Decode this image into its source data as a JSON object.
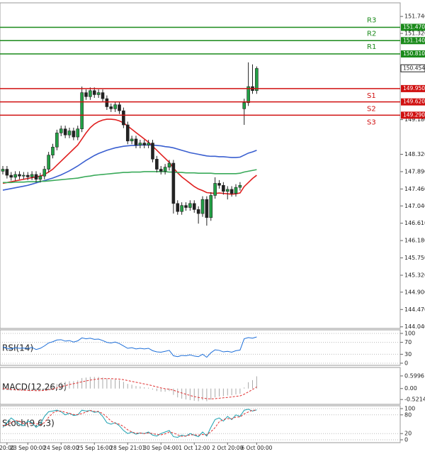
{
  "chart_data": [
    {
      "type": "candlestick",
      "categories": [
        null,
        "20:00",
        null,
        null,
        null,
        null,
        "23 Sep 00:00",
        null,
        null,
        null,
        null,
        null,
        null,
        null,
        "24 Sep 08:00",
        null,
        null,
        null,
        null,
        null,
        null,
        null,
        "25 Sep 16:00",
        null,
        null,
        null,
        null,
        null,
        null,
        null,
        "28 Sep 21:01",
        null,
        null,
        null,
        null,
        null,
        null,
        null,
        "30 Sep 04:00",
        null,
        null,
        null,
        null,
        null,
        null,
        null,
        "1 Oct 12:00",
        null,
        null,
        null,
        null,
        null,
        null,
        null,
        "2 Oct 20:00",
        null,
        null,
        null,
        null,
        null,
        null,
        "6 Oct 00:00"
      ],
      "open": [
        147.9,
        147.95,
        147.8,
        147.75,
        147.82,
        147.78,
        147.8,
        147.76,
        147.82,
        147.7,
        147.78,
        147.95,
        148.3,
        148.5,
        148.85,
        148.95,
        148.8,
        148.9,
        148.75,
        148.95,
        149.85,
        149.75,
        149.9,
        149.8,
        149.85,
        149.7,
        149.5,
        149.45,
        149.55,
        149.4,
        149.05,
        148.65,
        148.7,
        148.55,
        148.6,
        148.55,
        148.6,
        148.2,
        147.95,
        147.9,
        148.0,
        148.1,
        147.1,
        146.9,
        147.05,
        147.0,
        147.1,
        146.95,
        146.85,
        147.2,
        146.75,
        147.3,
        147.6,
        147.55,
        147.4,
        147.45,
        147.35,
        147.5,
        149.45,
        149.6,
        150.0,
        149.9
      ],
      "high": [
        148.03,
        148.03,
        147.88,
        147.9,
        147.9,
        147.88,
        147.88,
        147.9,
        147.9,
        147.86,
        148.03,
        148.38,
        148.58,
        148.93,
        149.03,
        149.03,
        148.98,
        148.98,
        149.03,
        150.0,
        149.93,
        149.98,
        149.98,
        149.93,
        149.93,
        149.78,
        149.58,
        149.63,
        149.63,
        149.48,
        149.13,
        148.78,
        148.78,
        148.68,
        148.68,
        148.68,
        148.68,
        148.28,
        148.03,
        148.08,
        148.18,
        148.18,
        147.18,
        147.13,
        147.13,
        147.18,
        147.18,
        147.03,
        147.28,
        147.28,
        147.38,
        147.75,
        147.68,
        147.63,
        147.53,
        147.53,
        147.58,
        147.63,
        149.7,
        150.6,
        150.55,
        150.5
      ],
      "low": [
        147.82,
        147.72,
        147.67,
        147.67,
        147.7,
        147.7,
        147.68,
        147.68,
        147.62,
        147.62,
        147.7,
        147.87,
        148.22,
        148.42,
        148.77,
        148.72,
        148.72,
        148.67,
        148.67,
        148.87,
        149.67,
        149.67,
        149.72,
        149.72,
        149.62,
        149.42,
        149.37,
        149.37,
        149.32,
        148.97,
        148.57,
        148.57,
        148.47,
        148.47,
        148.47,
        148.47,
        148.12,
        147.87,
        147.82,
        147.82,
        147.92,
        146.85,
        146.82,
        146.82,
        146.92,
        146.92,
        146.87,
        146.6,
        146.77,
        146.55,
        146.67,
        147.22,
        147.47,
        147.32,
        147.2,
        147.27,
        147.27,
        147.42,
        149.05,
        149.52,
        149.82,
        149.82
      ],
      "close": [
        147.95,
        147.8,
        147.75,
        147.82,
        147.78,
        147.8,
        147.76,
        147.82,
        147.7,
        147.78,
        147.95,
        148.3,
        148.5,
        148.85,
        148.95,
        148.8,
        148.9,
        148.75,
        148.95,
        149.85,
        149.75,
        149.9,
        149.8,
        149.85,
        149.7,
        149.5,
        149.45,
        149.55,
        149.4,
        149.05,
        148.65,
        148.7,
        148.55,
        148.6,
        148.55,
        148.6,
        148.2,
        147.95,
        147.9,
        148.0,
        148.1,
        147.1,
        146.9,
        147.05,
        147.0,
        147.1,
        146.95,
        146.85,
        147.2,
        146.75,
        147.3,
        147.6,
        147.55,
        147.4,
        147.45,
        147.35,
        147.5,
        147.55,
        149.6,
        150.0,
        149.9,
        150.45
      ],
      "up_color": "#22a045",
      "down_color": "#222222",
      "series": [
        {
          "color": "#e02020",
          "values": [
            147.6,
            147.62,
            147.64,
            147.66,
            147.68,
            147.7,
            147.72,
            147.74,
            147.76,
            147.78,
            147.82,
            147.88,
            147.95,
            148.05,
            148.15,
            148.25,
            148.35,
            148.45,
            148.55,
            148.7,
            148.85,
            148.98,
            149.07,
            149.13,
            149.17,
            149.19,
            149.19,
            149.18,
            149.15,
            149.1,
            149.02,
            148.94,
            148.86,
            148.78,
            148.7,
            148.62,
            148.52,
            148.42,
            148.32,
            148.22,
            148.12,
            147.98,
            147.86,
            147.76,
            147.68,
            147.6,
            147.52,
            147.46,
            147.42,
            147.37,
            147.36,
            147.35,
            147.36,
            147.35,
            147.34,
            147.33,
            147.34,
            147.36,
            147.52,
            147.62,
            147.72,
            147.8
          ]
        },
        {
          "color": "#3a5fd0",
          "values": [
            147.43,
            147.45,
            147.47,
            147.49,
            147.51,
            147.53,
            147.55,
            147.58,
            147.61,
            147.64,
            147.67,
            147.7,
            147.73,
            147.77,
            147.81,
            147.86,
            147.91,
            147.97,
            148.03,
            148.1,
            148.17,
            148.23,
            148.29,
            148.34,
            148.38,
            148.42,
            148.45,
            148.48,
            148.5,
            148.52,
            148.53,
            148.54,
            148.54,
            148.55,
            148.55,
            148.55,
            148.55,
            148.54,
            148.53,
            148.51,
            148.5,
            148.48,
            148.45,
            148.42,
            148.39,
            148.36,
            148.34,
            148.32,
            148.3,
            148.28,
            148.27,
            148.27,
            148.26,
            148.26,
            148.25,
            148.24,
            148.24,
            148.25,
            148.3,
            148.35,
            148.38,
            148.42
          ]
        },
        {
          "color": "#3aaa5a",
          "values": [
            147.62,
            147.62,
            147.62,
            147.63,
            147.63,
            147.63,
            147.64,
            147.64,
            147.64,
            147.65,
            147.65,
            147.66,
            147.67,
            147.68,
            147.69,
            147.7,
            147.71,
            147.72,
            147.73,
            147.75,
            147.77,
            147.78,
            147.8,
            147.81,
            147.82,
            147.83,
            147.84,
            147.85,
            147.86,
            147.87,
            147.87,
            147.88,
            147.88,
            147.88,
            147.89,
            147.89,
            147.89,
            147.89,
            147.89,
            147.89,
            147.88,
            147.88,
            147.87,
            147.87,
            147.86,
            147.86,
            147.86,
            147.85,
            147.85,
            147.85,
            147.85,
            147.84,
            147.84,
            147.84,
            147.84,
            147.84,
            147.84,
            147.85,
            147.88,
            147.9,
            147.92,
            147.94
          ]
        }
      ],
      "levels": [
        {
          "name": "R3",
          "value": {
            "value": 151.47,
            "label": "151.470"
          },
          "color": "#1a8a1a"
        },
        {
          "name": "R2",
          "value": {
            "value": 151.14,
            "label": "151.140"
          },
          "color": "#1a8a1a"
        },
        {
          "name": "R1",
          "value": {
            "value": 150.81,
            "label": "150.810"
          },
          "color": "#1a8a1a"
        },
        {
          "name": "S1",
          "value": {
            "value": 149.95,
            "label": "149.950"
          },
          "color": "#d01010"
        },
        {
          "name": "S2",
          "value": {
            "value": 149.62,
            "label": "149.620"
          },
          "color": "#d01010"
        },
        {
          "name": "S3",
          "value": {
            "value": 149.29,
            "label": "149.290"
          },
          "color": "#d01010"
        }
      ],
      "last": 150.454,
      "ylim": [
        144.0,
        152.06
      ],
      "yticks": [
        {
          "value": 151.74,
          "label": "151.740"
        },
        {
          "value": 151.32,
          "label": "151.320"
        },
        {
          "value": 149.18,
          "label": "149.180"
        },
        {
          "value": 148.32,
          "label": "148.320"
        },
        {
          "value": 147.89,
          "label": "147.890"
        },
        {
          "value": 147.46,
          "label": "147.460"
        },
        {
          "value": 147.04,
          "label": "147.040"
        },
        {
          "value": 146.61,
          "label": "146.610"
        },
        {
          "value": 146.18,
          "label": "146.180"
        },
        {
          "value": 145.75,
          "label": "145.750"
        },
        {
          "value": 145.32,
          "label": "145.320"
        },
        {
          "value": 144.9,
          "label": "144.900"
        },
        {
          "value": 144.47,
          "label": "144.470"
        },
        {
          "value": 144.04,
          "label": "144.040"
        }
      ]
    },
    {
      "type": "line",
      "title": "RSI(14)",
      "ylim": [
        0,
        100
      ],
      "yticks": [
        100,
        70,
        30,
        0
      ],
      "grid": true,
      "series": [
        {
          "color": "#1e6fd9",
          "style": "solid",
          "values": [
            55,
            50,
            48,
            52,
            50,
            51,
            49,
            53,
            46,
            50,
            58,
            68,
            72,
            78,
            79,
            74,
            76,
            71,
            75,
            85,
            82,
            84,
            80,
            81,
            76,
            70,
            68,
            71,
            66,
            58,
            50,
            52,
            48,
            50,
            48,
            50,
            42,
            38,
            37,
            40,
            43,
            25,
            22,
            26,
            25,
            28,
            24,
            22,
            30,
            20,
            35,
            45,
            43,
            38,
            40,
            37,
            42,
            44,
            82,
            86,
            84,
            88
          ]
        }
      ]
    },
    {
      "type": "line",
      "title": "MACD(12,26,9)",
      "ylim": [
        -0.75,
        0.85
      ],
      "yticks": [
        0.5996,
        {
          "value": 0,
          "label": "0.00"
        },
        -0.5214
      ],
      "grid": false,
      "series": [
        {
          "color": "#a8a8a8",
          "style": "bar",
          "values": [
            -0.05,
            -0.08,
            -0.1,
            -0.1,
            -0.1,
            -0.1,
            -0.1,
            -0.1,
            -0.12,
            -0.1,
            -0.05,
            0.05,
            0.12,
            0.22,
            0.3,
            0.32,
            0.35,
            0.35,
            0.38,
            0.5,
            0.52,
            0.55,
            0.55,
            0.55,
            0.52,
            0.48,
            0.45,
            0.44,
            0.4,
            0.32,
            0.22,
            0.18,
            0.12,
            0.1,
            0.06,
            0.04,
            -0.05,
            -0.12,
            -0.15,
            -0.15,
            -0.12,
            -0.3,
            -0.42,
            -0.48,
            -0.52,
            -0.55,
            -0.58,
            -0.6,
            -0.55,
            -0.6,
            -0.52,
            -0.42,
            -0.38,
            -0.36,
            -0.33,
            -0.32,
            -0.28,
            -0.25,
            0.05,
            0.3,
            0.4,
            0.58
          ]
        },
        {
          "color": "#e03030",
          "style": "dashed",
          "values": [
            0,
            -0.02,
            -0.04,
            -0.06,
            -0.07,
            -0.08,
            -0.09,
            -0.09,
            -0.1,
            -0.1,
            -0.09,
            -0.06,
            -0.02,
            0.03,
            0.09,
            0.14,
            0.19,
            0.23,
            0.27,
            0.32,
            0.36,
            0.4,
            0.43,
            0.46,
            0.47,
            0.47,
            0.47,
            0.46,
            0.45,
            0.42,
            0.38,
            0.34,
            0.3,
            0.26,
            0.22,
            0.18,
            0.13,
            0.08,
            0.03,
            -0.01,
            -0.03,
            -0.08,
            -0.15,
            -0.21,
            -0.27,
            -0.33,
            -0.38,
            -0.42,
            -0.45,
            -0.48,
            -0.49,
            -0.48,
            -0.46,
            -0.44,
            -0.42,
            -0.4,
            -0.37,
            -0.35,
            -0.27,
            -0.16,
            -0.05,
            0.08
          ]
        }
      ]
    },
    {
      "type": "line",
      "title": "Stoch(9,6,3)",
      "ylim": [
        0,
        100
      ],
      "yticks": [
        100,
        80,
        20,
        0
      ],
      "grid": true,
      "series": [
        {
          "color": "#1aa0b0",
          "style": "solid",
          "values": [
            40,
            55,
            70,
            60,
            50,
            45,
            60,
            55,
            40,
            50,
            75,
            90,
            92,
            95,
            90,
            80,
            85,
            78,
            80,
            95,
            92,
            94,
            88,
            90,
            75,
            55,
            50,
            55,
            45,
            30,
            20,
            25,
            18,
            22,
            20,
            25,
            15,
            12,
            20,
            25,
            30,
            10,
            8,
            15,
            12,
            20,
            15,
            10,
            25,
            12,
            40,
            65,
            70,
            60,
            75,
            65,
            80,
            75,
            95,
            98,
            92,
            96
          ]
        },
        {
          "color": "#e03030",
          "style": "dashed",
          "values": [
            45,
            48,
            55,
            62,
            60,
            52,
            52,
            53,
            52,
            48,
            55,
            72,
            86,
            92,
            92,
            88,
            85,
            81,
            81,
            84,
            89,
            94,
            91,
            91,
            84,
            73,
            60,
            53,
            50,
            43,
            32,
            25,
            21,
            22,
            20,
            22,
            20,
            17,
            16,
            19,
            25,
            22,
            16,
            11,
            12,
            16,
            16,
            15,
            17,
            16,
            26,
            39,
            58,
            65,
            68,
            67,
            73,
            73,
            83,
            89,
            95,
            95
          ]
        }
      ]
    }
  ]
}
